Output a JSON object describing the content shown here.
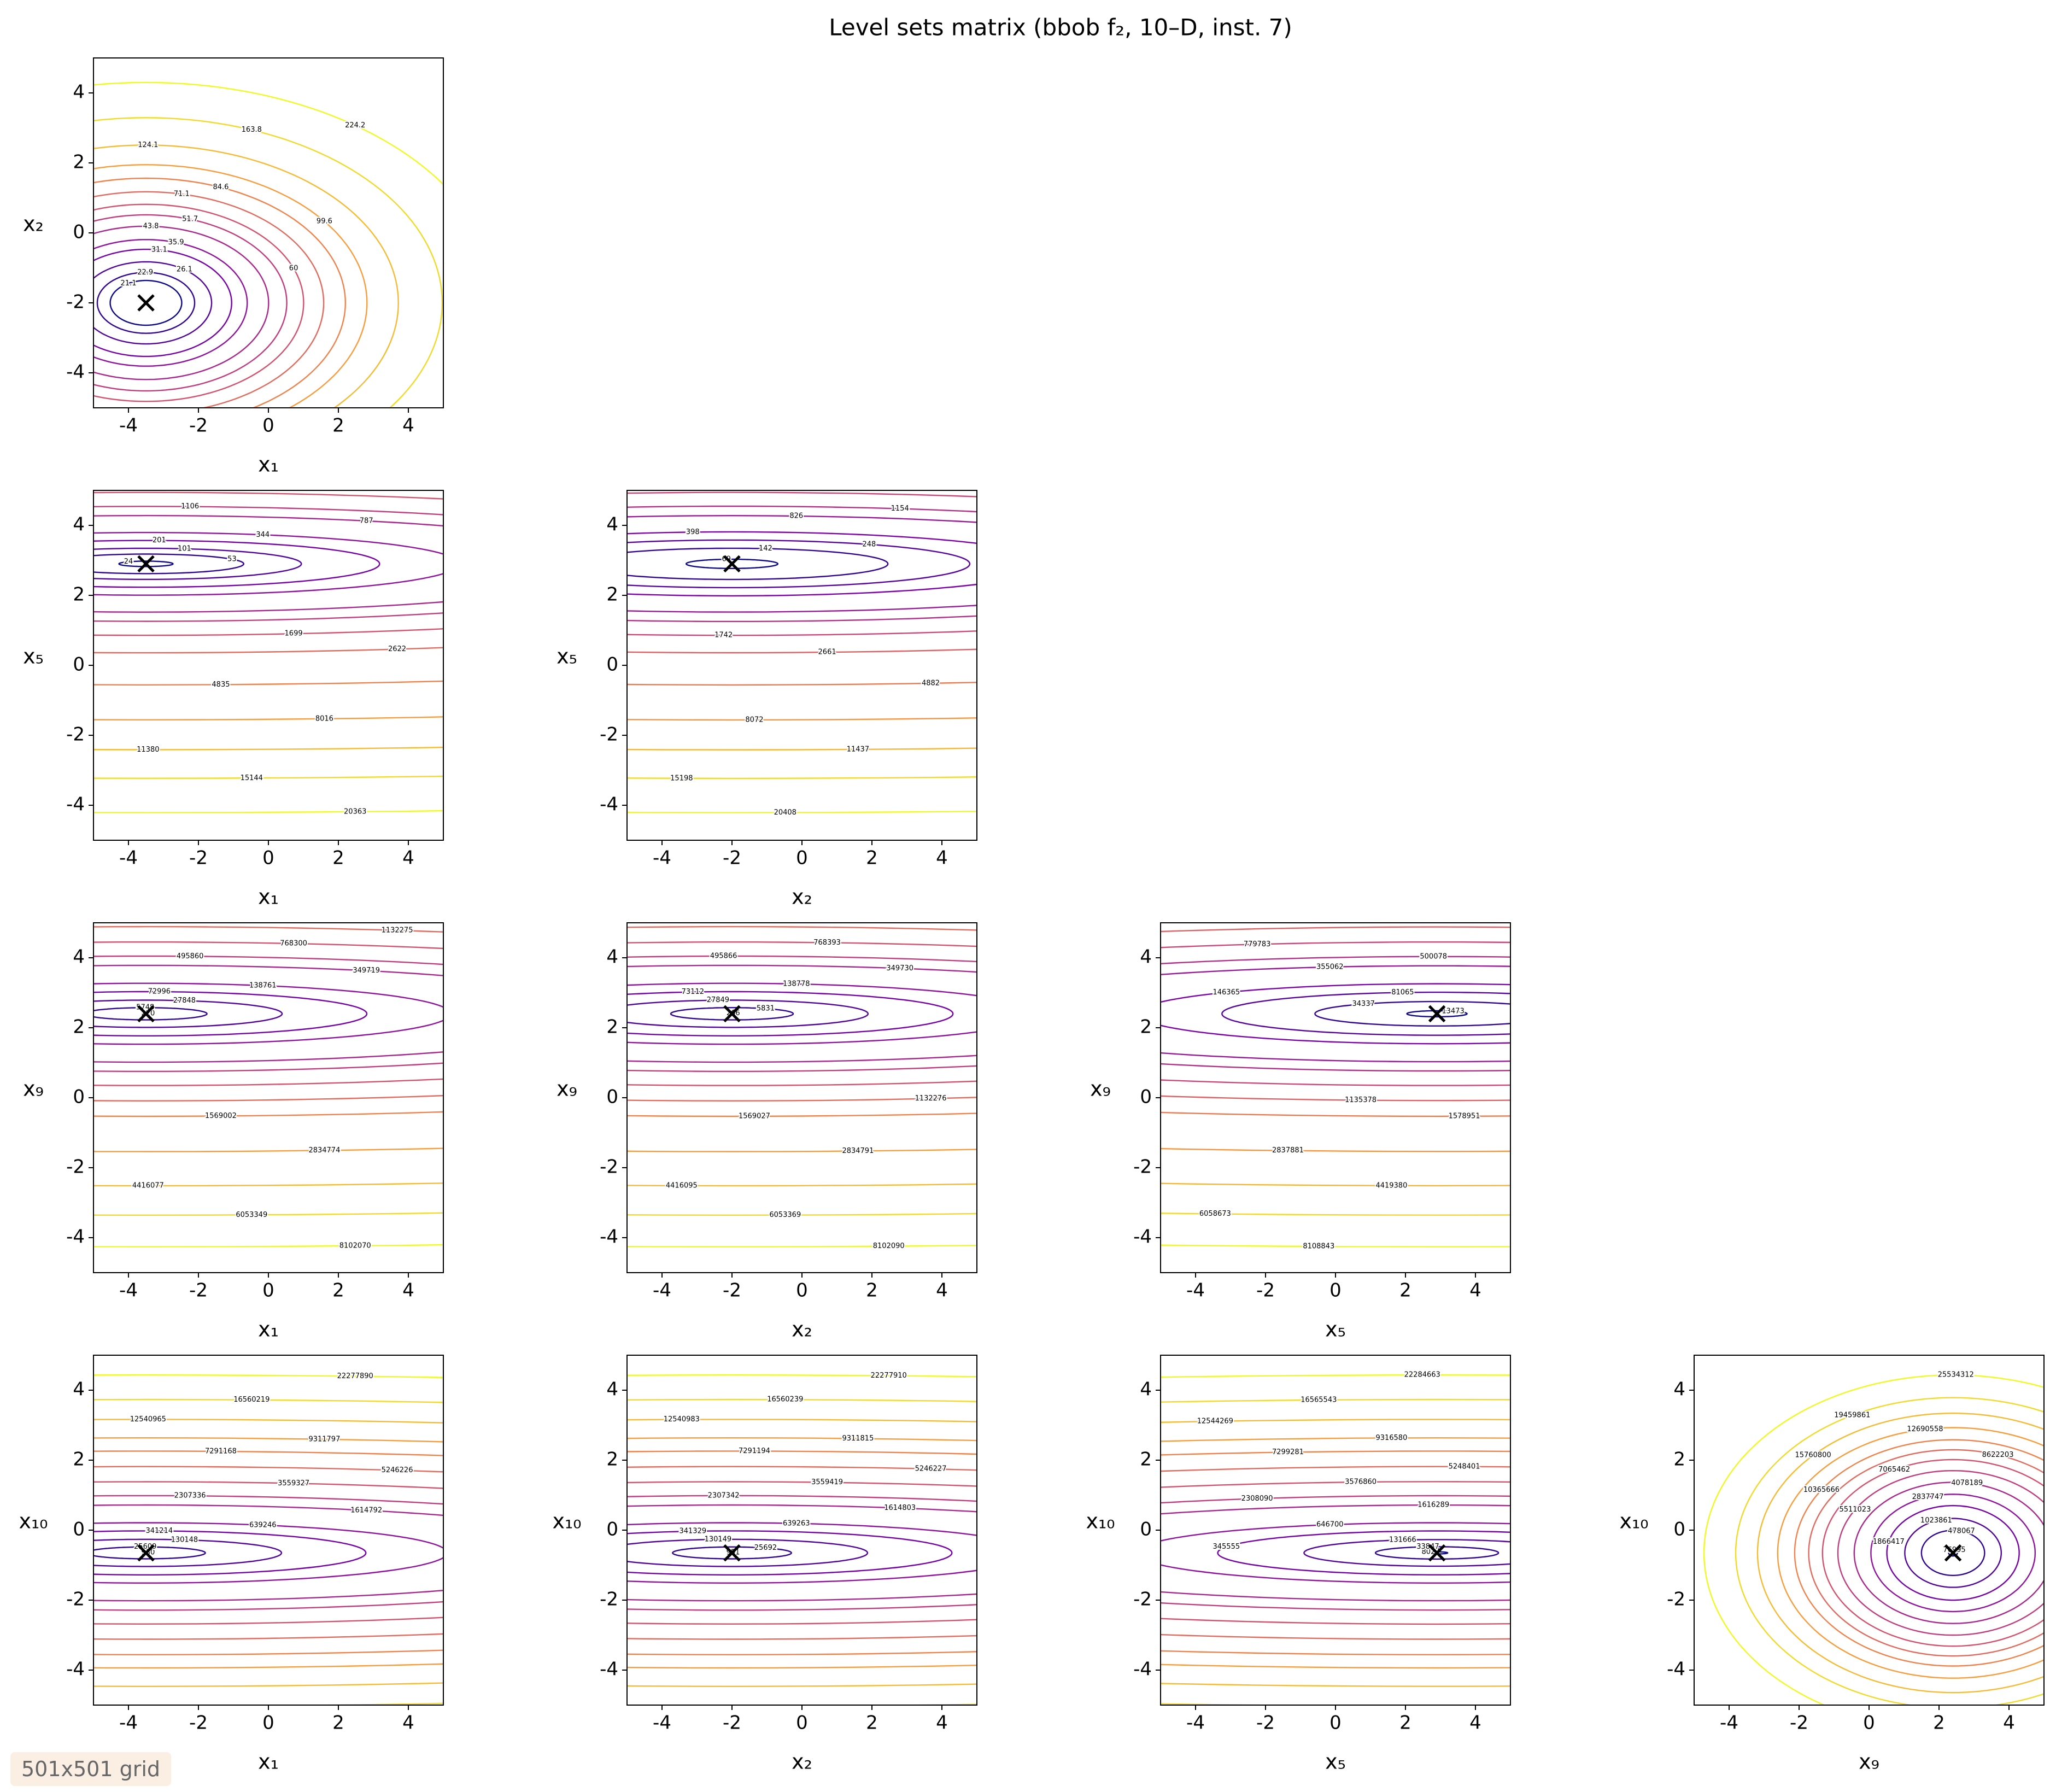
{
  "title": "Level sets matrix (bbob f₂, 10–D, inst. 7)",
  "note": "501x501 grid",
  "chart_data": [
    {
      "type": "contour",
      "x_label": "x₁",
      "y_label": "x₂",
      "xlim": [
        -5,
        5
      ],
      "ylim": [
        -5,
        5
      ],
      "xticks": [
        -4,
        -2,
        0,
        2,
        4
      ],
      "yticks": [
        -4,
        -2,
        0,
        2,
        4
      ],
      "optimum": {
        "x": -3.5,
        "y": -2
      },
      "levels": [
        21.1,
        22.9,
        26.1,
        31.1,
        35.9,
        43.8,
        51.7,
        60.0,
        71.1,
        84.6,
        99.6,
        124.1,
        163.8,
        224.2
      ]
    },
    {
      "type": "contour",
      "x_label": "x₁",
      "y_label": "x₅",
      "xlim": [
        -5,
        5
      ],
      "ylim": [
        -5,
        5
      ],
      "xticks": [
        -4,
        -2,
        0,
        2,
        4
      ],
      "yticks": [
        -4,
        -2,
        0,
        2,
        4
      ],
      "optimum": {
        "x": -3.5,
        "y": 2.9
      },
      "levels": [
        24,
        53,
        101,
        201,
        344,
        787,
        1106,
        1699,
        2622,
        4835,
        8016,
        11380,
        15144,
        20363
      ]
    },
    {
      "type": "contour",
      "x_label": "x₂",
      "y_label": "x₅",
      "xlim": [
        -5,
        5
      ],
      "ylim": [
        -5,
        5
      ],
      "xticks": [
        -4,
        -2,
        0,
        2,
        4
      ],
      "yticks": [
        -4,
        -2,
        0,
        2,
        4
      ],
      "optimum": {
        "x": -2,
        "y": 2.9
      },
      "levels": [
        69,
        142,
        248,
        398,
        826,
        1154,
        1742,
        2661,
        4882,
        8072,
        11437,
        15198,
        20408
      ]
    },
    {
      "type": "contour",
      "x_label": "x₁",
      "y_label": "x₉",
      "xlim": [
        -5,
        5
      ],
      "ylim": [
        -5,
        5
      ],
      "xticks": [
        -4,
        -2,
        0,
        2,
        4
      ],
      "yticks": [
        -4,
        -2,
        0,
        2,
        4
      ],
      "optimum": {
        "x": -3.5,
        "y": 2.4
      },
      "levels": [
        220,
        5748,
        27848,
        72996,
        138761,
        349719,
        495860,
        768300,
        1132275,
        1569002,
        2834774,
        4416077,
        6053349,
        8102070
      ]
    },
    {
      "type": "contour",
      "x_label": "x₂",
      "y_label": "x₉",
      "xlim": [
        -5,
        5
      ],
      "ylim": [
        -5,
        5
      ],
      "xticks": [
        -4,
        -2,
        0,
        2,
        4
      ],
      "yticks": [
        -4,
        -2,
        0,
        2,
        4
      ],
      "optimum": {
        "x": -2,
        "y": 2.4
      },
      "levels": [
        266,
        5831,
        27849,
        73112,
        138778,
        349730,
        495866,
        768393,
        1132276,
        1569027,
        2834791,
        4416095,
        6053369,
        8102090
      ]
    },
    {
      "type": "contour",
      "x_label": "x₅",
      "y_label": "x₉",
      "xlim": [
        -5,
        5
      ],
      "ylim": [
        -5,
        5
      ],
      "xticks": [
        -4,
        -2,
        0,
        2,
        4
      ],
      "yticks": [
        -4,
        -2,
        0,
        2,
        4
      ],
      "optimum": {
        "x": 2.9,
        "y": 2.4
      },
      "levels": [
        13473,
        34337,
        81065,
        146365,
        355062,
        500078,
        779783,
        1135378,
        1578951,
        2837881,
        4419380,
        6058673,
        8108843
      ]
    },
    {
      "type": "contour",
      "x_label": "x₁",
      "y_label": "x₁₀",
      "xlim": [
        -5,
        5
      ],
      "ylim": [
        -5,
        5
      ],
      "xticks": [
        -4,
        -2,
        0,
        2,
        4
      ],
      "yticks": [
        -4,
        -2,
        0,
        2,
        4
      ],
      "optimum": {
        "x": -3.5,
        "y": -0.65
      },
      "levels": [
        930,
        25609,
        130148,
        341214,
        639246,
        1614792,
        2307336,
        3559327,
        5246226,
        7291168,
        9311797,
        12540965,
        16560219,
        22277890
      ]
    },
    {
      "type": "contour",
      "x_label": "x₂",
      "y_label": "x₁₀",
      "xlim": [
        -5,
        5
      ],
      "ylim": [
        -5,
        5
      ],
      "xticks": [
        -4,
        -2,
        0,
        2,
        4
      ],
      "yticks": [
        -4,
        -2,
        0,
        2,
        4
      ],
      "optimum": {
        "x": -2,
        "y": -0.65
      },
      "levels": [
        951,
        25692,
        130149,
        341329,
        639263,
        1614803,
        2307342,
        3559419,
        5246227,
        7291194,
        9311815,
        12540983,
        16560239,
        22277910
      ]
    },
    {
      "type": "contour",
      "x_label": "x₅",
      "y_label": "x₁₀",
      "xlim": [
        -5,
        5
      ],
      "ylim": [
        -5,
        5
      ],
      "xticks": [
        -4,
        -2,
        0,
        2,
        4
      ],
      "yticks": [
        -4,
        -2,
        0,
        2,
        4
      ],
      "optimum": {
        "x": 2.9,
        "y": -0.65
      },
      "levels": [
        8027,
        33847,
        131666,
        345555,
        646700,
        1616289,
        2308090,
        3576860,
        5248401,
        7299281,
        9316580,
        12544269,
        16565543,
        22284663
      ]
    },
    {
      "type": "contour",
      "x_label": "x₉",
      "y_label": "x₁₀",
      "xlim": [
        -5,
        5
      ],
      "ylim": [
        -5,
        5
      ],
      "xticks": [
        -4,
        -2,
        0,
        2,
        4
      ],
      "yticks": [
        -4,
        -2,
        0,
        2,
        4
      ],
      "optimum": {
        "x": 2.4,
        "y": -0.65
      },
      "levels": [
        76995,
        478067,
        1023861,
        1866417,
        2837747,
        4078189,
        5511023,
        7065462,
        8622203,
        10365666,
        12690558,
        15760800,
        19459861,
        25534312
      ]
    }
  ]
}
